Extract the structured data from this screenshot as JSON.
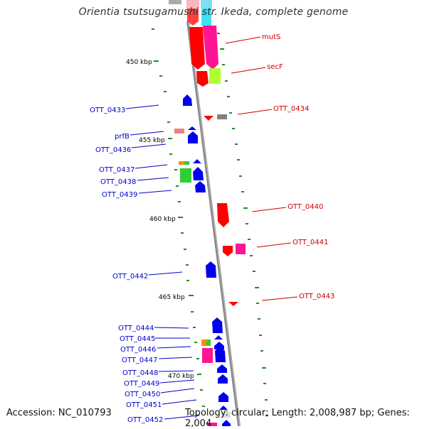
{
  "title": "Orientia tsutsugamushi str. Ikeda, complete genome",
  "footer": {
    "accession": "Accession: NC_010793",
    "topology": "Topology: circular; Length: 2,008,987 bp; Genes: 2,004"
  },
  "colors": {
    "forward_label": "#0000cc",
    "reverse_label": "#cc0000",
    "tick": "#228b22",
    "backbone": "#8a8a8a"
  },
  "scale_labels": [
    "450 kbp",
    "455 kbp",
    "460 kbp",
    "465 kbp",
    "470 kbp"
  ],
  "genes": [
    {
      "label": "mutS",
      "strand": "reverse"
    },
    {
      "label": "secF",
      "strand": "reverse"
    },
    {
      "label": "OTT_0433",
      "strand": "forward"
    },
    {
      "label": "OTT_0434",
      "strand": "reverse"
    },
    {
      "label": "prfB",
      "strand": "forward"
    },
    {
      "label": "OTT_0436",
      "strand": "forward"
    },
    {
      "label": "OTT_0437",
      "strand": "forward"
    },
    {
      "label": "OTT_0438",
      "strand": "forward"
    },
    {
      "label": "OTT_0439",
      "strand": "forward"
    },
    {
      "label": "OTT_0440",
      "strand": "reverse"
    },
    {
      "label": "OTT_0441",
      "strand": "reverse"
    },
    {
      "label": "OTT_0442",
      "strand": "forward"
    },
    {
      "label": "OTT_0443",
      "strand": "reverse"
    },
    {
      "label": "OTT_0444",
      "strand": "forward"
    },
    {
      "label": "OTT_0445",
      "strand": "forward"
    },
    {
      "label": "OTT_0446",
      "strand": "forward"
    },
    {
      "label": "OTT_0447",
      "strand": "forward"
    },
    {
      "label": "OTT_0448",
      "strand": "forward"
    },
    {
      "label": "OTT_0449",
      "strand": "forward"
    },
    {
      "label": "OTT_0450",
      "strand": "forward"
    },
    {
      "label": "OTT_0451",
      "strand": "forward"
    },
    {
      "label": "OTT_0452",
      "strand": "forward"
    }
  ]
}
